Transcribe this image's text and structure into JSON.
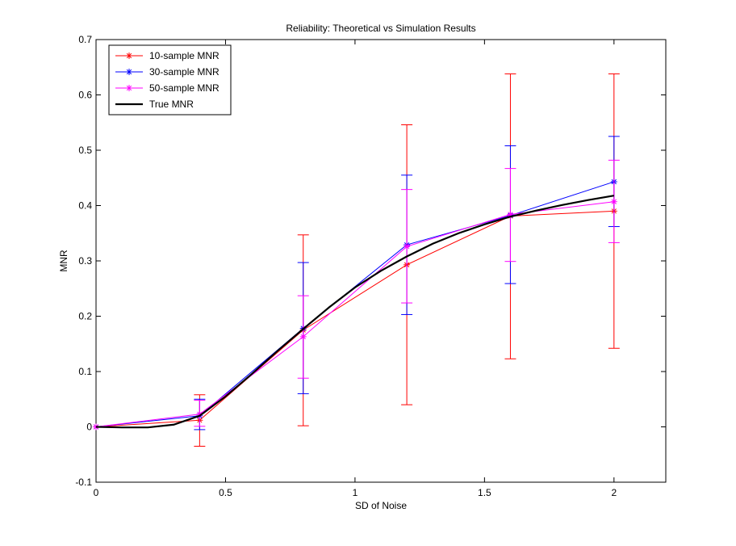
{
  "chart_data": {
    "type": "line",
    "title": "Reliability: Theoretical vs Simulation Results",
    "xlabel": "SD of Noise",
    "ylabel": "MNR",
    "xlim": [
      0,
      2.2
    ],
    "ylim": [
      -0.1,
      0.7
    ],
    "xticks": [
      0,
      0.5,
      1,
      1.5,
      2
    ],
    "xtick_labels": [
      "0",
      "0.5",
      "1",
      "1.5",
      "2"
    ],
    "yticks": [
      -0.1,
      0,
      0.1,
      0.2,
      0.3,
      0.4,
      0.5,
      0.6,
      0.7
    ],
    "ytick_labels": [
      "-0.1",
      "0",
      "0.1",
      "0.2",
      "0.3",
      "0.4",
      "0.5",
      "0.6",
      "0.7"
    ],
    "grid": false,
    "legend_position": "top-left",
    "series": [
      {
        "name": "10-sample MNR",
        "color": "#ff0000",
        "marker": "asterisk",
        "x": [
          0,
          0.4,
          0.8,
          1.2,
          1.6,
          2.0
        ],
        "y": [
          0,
          0.012,
          0.175,
          0.293,
          0.381,
          0.39
        ],
        "err_low": [
          null,
          -0.035,
          0.002,
          0.04,
          0.123,
          0.142
        ],
        "err_high": [
          null,
          0.058,
          0.347,
          0.546,
          0.638,
          0.638
        ]
      },
      {
        "name": "30-sample MNR",
        "color": "#0000ff",
        "marker": "asterisk",
        "x": [
          0,
          0.4,
          0.8,
          1.2,
          1.6,
          2.0
        ],
        "y": [
          0,
          0.02,
          0.178,
          0.329,
          0.382,
          0.443
        ],
        "err_low": [
          null,
          -0.005,
          0.06,
          0.203,
          0.259,
          0.362
        ],
        "err_high": [
          null,
          0.05,
          0.297,
          0.455,
          0.508,
          0.525
        ]
      },
      {
        "name": "50-sample MNR",
        "color": "#ff00ff",
        "marker": "asterisk",
        "x": [
          0,
          0.4,
          0.8,
          1.2,
          1.6,
          2.0
        ],
        "y": [
          0,
          0.023,
          0.163,
          0.326,
          0.384,
          0.407
        ],
        "err_low": [
          null,
          0.001,
          0.088,
          0.224,
          0.299,
          0.333
        ],
        "err_high": [
          null,
          0.048,
          0.237,
          0.429,
          0.467,
          0.482
        ]
      },
      {
        "name": "True MNR",
        "color": "#000000",
        "marker": "none",
        "x": [
          0,
          0.1,
          0.2,
          0.3,
          0.4,
          0.5,
          0.6,
          0.7,
          0.8,
          0.9,
          1.0,
          1.1,
          1.2,
          1.3,
          1.4,
          1.5,
          1.6,
          1.7,
          1.8,
          1.9,
          2.0
        ],
        "y": [
          0,
          -0.001,
          -0.001,
          0.004,
          0.02,
          0.055,
          0.095,
          0.137,
          0.177,
          0.216,
          0.252,
          0.282,
          0.308,
          0.331,
          0.35,
          0.366,
          0.38,
          0.391,
          0.401,
          0.41,
          0.418
        ]
      }
    ]
  }
}
